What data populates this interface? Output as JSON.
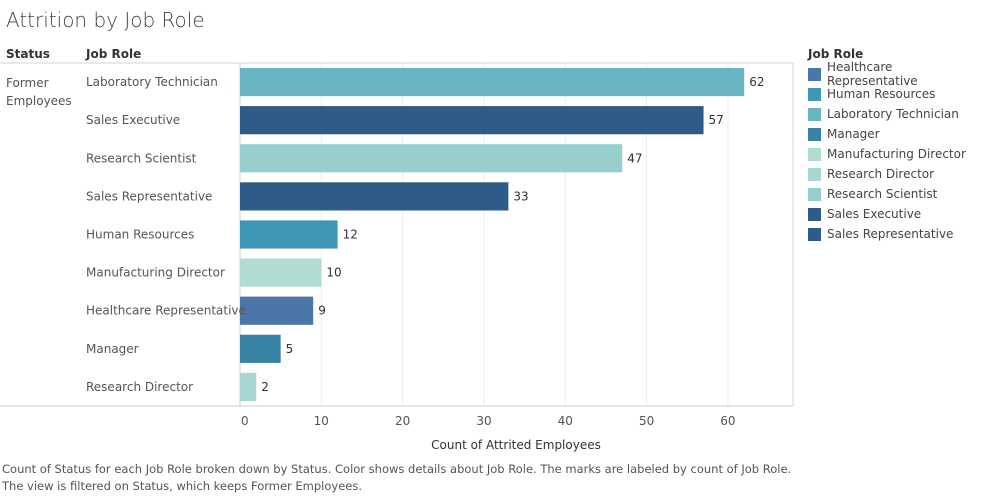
{
  "title": "Attrition by Job Role",
  "headers": {
    "status": "Status",
    "job_role": "Job Role"
  },
  "status_value": "Former Employees",
  "chart_data": {
    "type": "bar",
    "orientation": "horizontal",
    "categories": [
      "Laboratory Technician",
      "Sales Executive",
      "Research Scientist",
      "Sales Representative",
      "Human Resources",
      "Manufacturing Director",
      "Healthcare Representative",
      "Manager",
      "Research Director"
    ],
    "values": [
      62,
      57,
      47,
      33,
      12,
      10,
      9,
      5,
      2
    ],
    "colors": [
      "#6ab5c2",
      "#2e5b87",
      "#97cece",
      "#2e5b87",
      "#3f97b5",
      "#b1dcd4",
      "#4b76a8",
      "#3683a5",
      "#a6d7d2"
    ],
    "xlabel": "Count of Attrited Employees",
    "ylabel": "Job Role",
    "xlim": [
      0,
      68
    ],
    "xticks": [
      0,
      10,
      20,
      30,
      40,
      50,
      60
    ],
    "grid": true,
    "legend": {
      "title": "Job Role",
      "position": "right",
      "items": [
        {
          "label": "Healthcare Representative",
          "color": "#4b76a8"
        },
        {
          "label": "Human Resources",
          "color": "#3f97b5"
        },
        {
          "label": "Laboratory Technician",
          "color": "#6ab5c2"
        },
        {
          "label": "Manager",
          "color": "#3683a5"
        },
        {
          "label": "Manufacturing Director",
          "color": "#b1dcd4"
        },
        {
          "label": "Research Director",
          "color": "#a6d7d2"
        },
        {
          "label": "Research Scientist",
          "color": "#97cece"
        },
        {
          "label": "Sales Executive",
          "color": "#2e5b87"
        },
        {
          "label": "Sales Representative",
          "color": "#2e5b87"
        }
      ]
    }
  },
  "caption": {
    "line1": "Count of Status for each Job Role broken down by Status.  Color shows details about Job Role.  The marks are labeled by count of Job Role.",
    "line2": "The view is filtered on Status, which keeps Former Employees."
  }
}
